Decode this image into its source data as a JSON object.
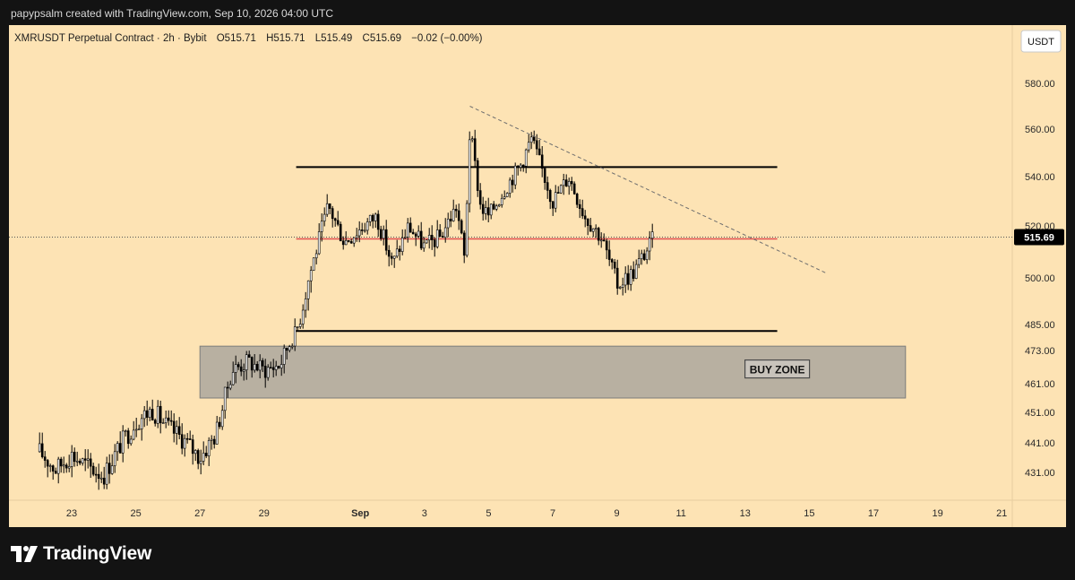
{
  "header": {
    "credit": "papypsalm created with TradingView.com, Sep 10, 2026 04:00 UTC"
  },
  "footer": {
    "brand": "TradingView"
  },
  "colors": {
    "background": "#fde3b4",
    "candle": "#000000",
    "support_resistance": "#000000",
    "current_level_line": "#e05050",
    "buy_zone_fill": "#9c9c9a",
    "trendline": "#6e6e6e",
    "price_tag_bg": "#000000"
  },
  "chart_data": {
    "type": "candlestick",
    "symbol_line": {
      "symbol": "XMRUSDT Perpetual Contract · 2h · Bybit",
      "open": "O515.71",
      "high": "H515.71",
      "low": "L515.49",
      "close": "C515.69",
      "change": "−0.02 (−0.00%)"
    },
    "currency_label": "USDT",
    "last_price": "515.69",
    "y_ticks": [
      {
        "value": 580,
        "label": "580.00"
      },
      {
        "value": 560,
        "label": "560.00"
      },
      {
        "value": 540,
        "label": "540.00"
      },
      {
        "value": 520,
        "label": "520.00"
      },
      {
        "value": 500,
        "label": "500.00"
      },
      {
        "value": 485,
        "label": "485.00"
      },
      {
        "value": 473,
        "label": "473.00"
      },
      {
        "value": 461,
        "label": "461.00"
      },
      {
        "value": 451,
        "label": "451.00"
      },
      {
        "value": 441,
        "label": "441.00"
      },
      {
        "value": 431,
        "label": "431.00"
      }
    ],
    "x_ticks": [
      {
        "date": "2026-08-23",
        "label": "23"
      },
      {
        "date": "2026-08-25",
        "label": "25"
      },
      {
        "date": "2026-08-27",
        "label": "27"
      },
      {
        "date": "2026-08-29",
        "label": "29"
      },
      {
        "date": "2026-09-01",
        "label": "Sep"
      },
      {
        "date": "2026-09-03",
        "label": "3"
      },
      {
        "date": "2026-09-05",
        "label": "5"
      },
      {
        "date": "2026-09-07",
        "label": "7"
      },
      {
        "date": "2026-09-09",
        "label": "9"
      },
      {
        "date": "2026-09-11",
        "label": "11"
      },
      {
        "date": "2026-09-13",
        "label": "13"
      },
      {
        "date": "2026-09-15",
        "label": "15"
      },
      {
        "date": "2026-09-17",
        "label": "17"
      },
      {
        "date": "2026-09-19",
        "label": "19"
      },
      {
        "date": "2026-09-21",
        "label": "21"
      }
    ],
    "close_anchors": [
      {
        "date": "2026-08-22",
        "close": 438
      },
      {
        "date": "2026-08-22T12:00",
        "close": 432
      },
      {
        "date": "2026-08-23",
        "close": 437
      },
      {
        "date": "2026-08-23T12:00",
        "close": 433
      },
      {
        "date": "2026-08-24",
        "close": 430
      },
      {
        "date": "2026-08-24T12:00",
        "close": 440
      },
      {
        "date": "2026-08-25",
        "close": 448
      },
      {
        "date": "2026-08-25T12:00",
        "close": 452
      },
      {
        "date": "2026-08-26",
        "close": 446
      },
      {
        "date": "2026-08-26T12:00",
        "close": 442
      },
      {
        "date": "2026-08-27",
        "close": 436
      },
      {
        "date": "2026-08-27T12:00",
        "close": 444
      },
      {
        "date": "2026-08-28",
        "close": 466
      },
      {
        "date": "2026-08-28T12:00",
        "close": 469
      },
      {
        "date": "2026-08-29",
        "close": 466
      },
      {
        "date": "2026-08-29T12:00",
        "close": 468
      },
      {
        "date": "2026-08-30",
        "close": 482
      },
      {
        "date": "2026-08-30T12:00",
        "close": 505
      },
      {
        "date": "2026-08-31",
        "close": 528
      },
      {
        "date": "2026-08-31T12:00",
        "close": 514
      },
      {
        "date": "2026-09-01",
        "close": 519
      },
      {
        "date": "2026-09-01T12:00",
        "close": 524
      },
      {
        "date": "2026-09-02",
        "close": 505
      },
      {
        "date": "2026-09-02T12:00",
        "close": 520
      },
      {
        "date": "2026-09-03",
        "close": 512
      },
      {
        "date": "2026-09-03T12:00",
        "close": 516
      },
      {
        "date": "2026-09-04",
        "close": 528
      },
      {
        "date": "2026-09-04T06:00",
        "close": 507
      },
      {
        "date": "2026-09-04T10:00",
        "close": 560
      },
      {
        "date": "2026-09-04T18:00",
        "close": 528
      },
      {
        "date": "2026-09-05",
        "close": 524
      },
      {
        "date": "2026-09-05T12:00",
        "close": 535
      },
      {
        "date": "2026-09-06",
        "close": 545
      },
      {
        "date": "2026-09-06T08:00",
        "close": 556
      },
      {
        "date": "2026-09-06T16:00",
        "close": 543
      },
      {
        "date": "2026-09-07",
        "close": 530
      },
      {
        "date": "2026-09-07T12:00",
        "close": 540
      },
      {
        "date": "2026-09-08",
        "close": 524
      },
      {
        "date": "2026-09-08T12:00",
        "close": 516
      },
      {
        "date": "2026-09-09",
        "close": 498
      },
      {
        "date": "2026-09-09T12:00",
        "close": 502
      },
      {
        "date": "2026-09-10",
        "close": 512
      },
      {
        "date": "2026-09-10T04:00",
        "close": 515.69
      }
    ],
    "annotations": {
      "resistance": {
        "price": 544,
        "from": "2026-08-30",
        "to": "2026-09-14"
      },
      "support": {
        "price": 482,
        "from": "2026-08-30",
        "to": "2026-09-14"
      },
      "current_level": {
        "price": 515,
        "from": "2026-08-30",
        "to": "2026-09-14"
      },
      "buy_zone": {
        "label": "BUY ZONE",
        "top": 475,
        "bottom": 456,
        "from": "2026-08-27",
        "to": "2026-09-18"
      },
      "trendline": {
        "from_date": "2026-09-04T10:00",
        "from_price": 570,
        "to_date": "2026-09-15T12:00",
        "to_price": 502
      },
      "last_price_line": 515.69
    }
  }
}
